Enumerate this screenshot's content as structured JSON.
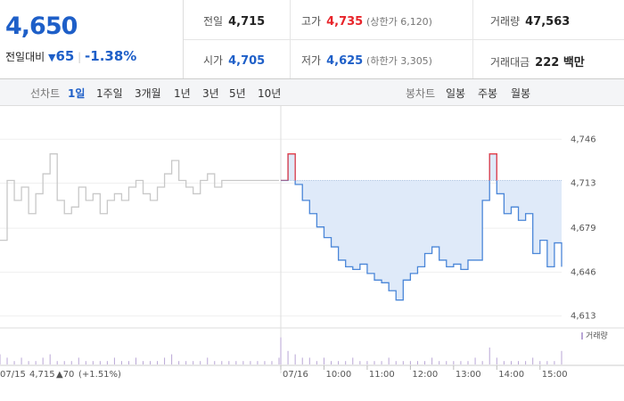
{
  "header": {
    "price": "4,650",
    "change_label": "전일대비",
    "change": "65",
    "change_pct": "-1.38%",
    "table": [
      [
        "전일",
        "4,715"
      ],
      [
        "고가",
        "4,735",
        "(상한가 6,120)"
      ],
      [
        "거래량",
        "47,563"
      ],
      [
        "시가",
        "4,705"
      ],
      [
        "저가",
        "4,625",
        "(하한가 3,305)"
      ],
      [
        "거래대금",
        "222 백만"
      ]
    ]
  },
  "toolbar": {
    "line_chart": "선차트",
    "periods": [
      "1일",
      "1주일",
      "3개월",
      "1년",
      "3년",
      "5년",
      "10년"
    ],
    "candle_chart": "봉차트",
    "candles": [
      "일봉",
      "주봉",
      "월봉"
    ]
  },
  "footer": {
    "prev_close": "4,715",
    "prev_change": "▲70",
    "prev_pct": "(+1.51%)"
  },
  "chart_data": {
    "type": "line",
    "legend": "거래량",
    "categories": [
      "07/15",
      null,
      null,
      null,
      null,
      null,
      null,
      null,
      null,
      null,
      null,
      null,
      null,
      null,
      null,
      null,
      null,
      null,
      null,
      null,
      null,
      null,
      null,
      null,
      null,
      null,
      null,
      null,
      null,
      null,
      null,
      null,
      null,
      null,
      null,
      null,
      null,
      null,
      null,
      null,
      "07/16",
      null,
      null,
      null,
      null,
      null,
      "10:00",
      null,
      null,
      null,
      null,
      null,
      "11:00",
      null,
      null,
      null,
      null,
      null,
      "12:00",
      null,
      null,
      null,
      null,
      null,
      "13:00",
      null,
      null,
      null,
      null,
      null,
      "14:00",
      null,
      null,
      null,
      null,
      null,
      "15:00",
      null,
      null,
      null
    ],
    "series": [
      {
        "color": "#c8c8c8",
        "values": [
          4670,
          4715,
          4700,
          4710,
          4690,
          4705,
          4720,
          4735,
          4700,
          4690,
          4695,
          4710,
          4700,
          4705,
          4690,
          4700,
          4705,
          4700,
          4710,
          4715,
          4705,
          4700,
          4710,
          4720,
          4730,
          4715,
          4710,
          4705,
          4715,
          4720,
          4710,
          4715,
          4715,
          4715,
          4715,
          4715,
          4715,
          4715,
          4715,
          4715,
          null,
          null,
          null,
          null,
          null,
          null,
          null,
          null,
          null,
          null,
          null,
          null,
          null,
          null,
          null,
          null,
          null,
          null,
          null,
          null,
          null,
          null,
          null,
          null,
          null,
          null,
          null,
          null,
          null,
          null,
          null,
          null,
          null,
          null,
          null,
          null,
          null,
          null,
          null,
          null
        ]
      },
      {
        "color": "#4a86d8",
        "up_color": "#e8424a",
        "fill": "#dfeaf9",
        "values": [
          null,
          null,
          null,
          null,
          null,
          null,
          null,
          null,
          null,
          null,
          null,
          null,
          null,
          null,
          null,
          null,
          null,
          null,
          null,
          null,
          null,
          null,
          null,
          null,
          null,
          null,
          null,
          null,
          null,
          null,
          null,
          null,
          null,
          null,
          null,
          null,
          null,
          null,
          null,
          null,
          4715,
          4735,
          4712,
          4700,
          4690,
          4680,
          4672,
          4665,
          4655,
          4650,
          4648,
          4652,
          4645,
          4640,
          4638,
          4632,
          4625,
          4640,
          4645,
          4650,
          4660,
          4665,
          4655,
          4650,
          4652,
          4648,
          4655,
          4655,
          4700,
          4735,
          4705,
          4690,
          4695,
          4685,
          4690,
          4660,
          4670,
          4650,
          4668,
          4650
        ]
      },
      {
        "axis": "y2",
        "color": "#b9a6d6",
        "values": [
          3,
          2,
          1,
          2,
          1,
          1,
          2,
          3,
          1,
          1,
          1,
          2,
          1,
          1,
          1,
          1,
          2,
          1,
          1,
          2,
          1,
          1,
          1,
          2,
          3,
          1,
          1,
          1,
          1,
          2,
          1,
          1,
          1,
          1,
          1,
          1,
          1,
          1,
          1,
          2,
          8,
          4,
          3,
          2,
          2,
          1,
          2,
          1,
          1,
          1,
          2,
          1,
          1,
          1,
          1,
          2,
          1,
          1,
          1,
          1,
          1,
          2,
          1,
          1,
          1,
          1,
          1,
          2,
          1,
          5,
          2,
          1,
          1,
          1,
          1,
          2,
          1,
          1,
          1,
          4
        ]
      }
    ],
    "reference": 4715,
    "ylim": [
      4606,
      4767
    ],
    "yticks": [
      {
        "value": 4613,
        "label": "4,613"
      },
      {
        "value": 4646,
        "label": "4,646"
      },
      {
        "value": 4679,
        "label": "4,679"
      },
      {
        "value": 4713,
        "label": "4,713"
      },
      {
        "value": 4746,
        "label": "4,746"
      }
    ],
    "y2lim": [
      0,
      10
    ],
    "grid": true
  }
}
